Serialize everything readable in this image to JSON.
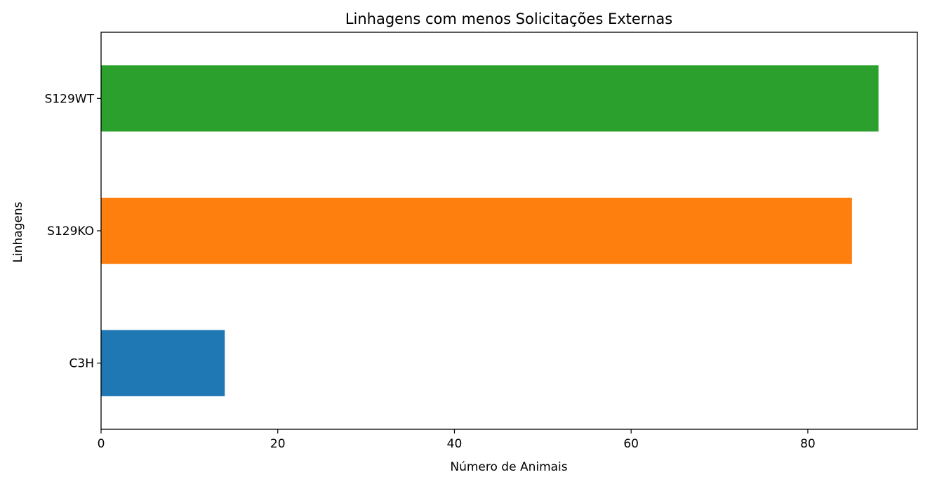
{
  "chart_data": {
    "type": "bar",
    "orientation": "horizontal",
    "title": "Linhagens com menos Solicitações Externas",
    "xlabel": "Número de Animais",
    "ylabel": "Linhagens",
    "categories": [
      "C3H",
      "S129KO",
      "S129WT"
    ],
    "values": [
      14,
      85,
      88
    ],
    "colors": [
      "#1f77b4",
      "#ff7f0e",
      "#2ca02c"
    ],
    "xlim": [
      0,
      92.4
    ],
    "xticks": [
      0,
      20,
      40,
      60,
      80
    ],
    "grid": false,
    "legend": "none"
  }
}
